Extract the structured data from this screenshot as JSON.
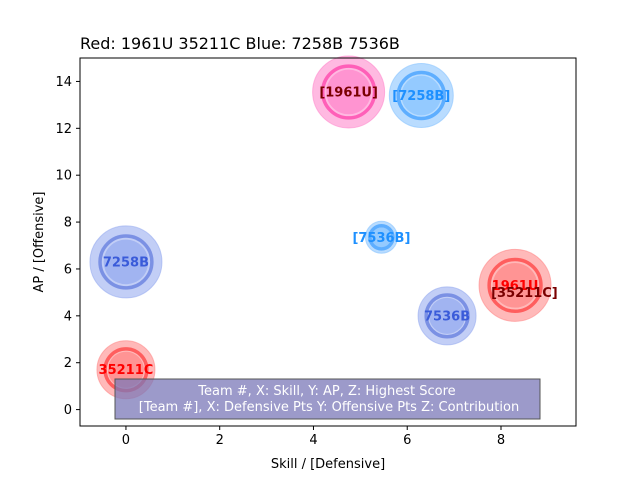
{
  "chart_data": {
    "type": "scatter",
    "title": "Red: 1961U 35211C  Blue: 7258B 7536B",
    "xlabel": "Skill / [Defensive]",
    "ylabel": "AP / [Offensive]",
    "xlim": [
      -0.98,
      9.6
    ],
    "ylim": [
      -0.7,
      15.0
    ],
    "xticks": [
      0,
      2,
      4,
      6,
      8
    ],
    "yticks": [
      0,
      2,
      4,
      6,
      8,
      10,
      12,
      14
    ],
    "grid": false,
    "legend_text": [
      "Team #, X: Skill, Y: AP, Z: Highest Score",
      "[Team #], X: Defensive Pts Y: Offensive Pts Z: Contribution"
    ],
    "points": [
      {
        "team": "1961U",
        "label": "[1961U]",
        "x": 4.75,
        "y": 13.55,
        "size": "large",
        "fill": "#ff80c8",
        "ring": "#ff4fb0",
        "label_color": "#7a0000"
      },
      {
        "team": "7258B",
        "label": "[7258B]",
        "x": 6.3,
        "y": 13.4,
        "size": "medium-large",
        "fill": "#80c0ff",
        "ring": "#4da6ff",
        "label_color": "#1e90ff"
      },
      {
        "team": "7536B",
        "label": "[7536B]",
        "x": 5.45,
        "y": 7.35,
        "size": "small",
        "fill": "#80c0ff",
        "ring": "#4da6ff",
        "label_color": "#1e90ff"
      },
      {
        "team": "7258B",
        "label": "7258B",
        "x": 0.0,
        "y": 6.3,
        "size": "large",
        "fill": "#8fa6ee",
        "ring": "#6f86e0",
        "label_color": "#3a5bd9"
      },
      {
        "team": "1961U",
        "label": "1961U",
        "x": 8.3,
        "y": 5.3,
        "size": "large",
        "fill": "#ff8080",
        "ring": "#ff4d4d",
        "label_color": "#ff0000"
      },
      {
        "team": "35211C",
        "label": "[35211C]",
        "x": 8.5,
        "y": 5.0,
        "size": "none",
        "fill": "#ff8080",
        "ring": "#ff4d4d",
        "label_color": "#7a0000"
      },
      {
        "team": "7536B",
        "label": "7536B",
        "x": 6.85,
        "y": 4.0,
        "size": "medium",
        "fill": "#8fa6ee",
        "ring": "#6f86e0",
        "label_color": "#3a5bd9"
      },
      {
        "team": "35211C",
        "label": "35211C",
        "x": 0.0,
        "y": 1.7,
        "size": "medium",
        "fill": "#ff8080",
        "ring": "#ff4d4d",
        "label_color": "#ff0000"
      }
    ]
  }
}
